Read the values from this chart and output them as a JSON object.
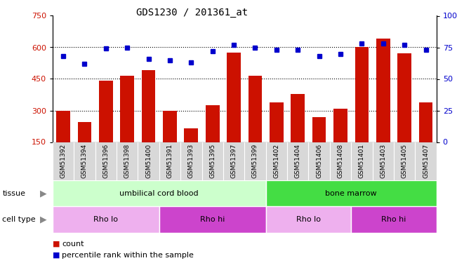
{
  "title": "GDS1230 / 201361_at",
  "samples": [
    "GSM51392",
    "GSM51394",
    "GSM51396",
    "GSM51398",
    "GSM51400",
    "GSM51391",
    "GSM51393",
    "GSM51395",
    "GSM51397",
    "GSM51399",
    "GSM51402",
    "GSM51404",
    "GSM51406",
    "GSM51408",
    "GSM51401",
    "GSM51403",
    "GSM51405",
    "GSM51407"
  ],
  "counts": [
    300,
    245,
    440,
    465,
    490,
    300,
    215,
    325,
    575,
    465,
    340,
    380,
    270,
    310,
    600,
    640,
    570,
    340
  ],
  "percentiles": [
    68,
    62,
    74,
    75,
    66,
    65,
    63,
    72,
    77,
    75,
    73,
    73,
    68,
    70,
    78,
    78,
    77,
    73
  ],
  "ylim_left": [
    150,
    750
  ],
  "ylim_right": [
    0,
    100
  ],
  "yticks_left": [
    150,
    300,
    450,
    600,
    750
  ],
  "yticks_right": [
    0,
    25,
    50,
    75,
    100
  ],
  "bar_color": "#cc1100",
  "dot_color": "#0000cc",
  "tissue_groups": [
    {
      "label": "umbilical cord blood",
      "start": 0,
      "end": 10,
      "color": "#ccffcc"
    },
    {
      "label": "bone marrow",
      "start": 10,
      "end": 18,
      "color": "#44dd44"
    }
  ],
  "cell_type_groups": [
    {
      "label": "Rho lo",
      "start": 0,
      "end": 5,
      "color": "#eeb0ee"
    },
    {
      "label": "Rho hi",
      "start": 5,
      "end": 10,
      "color": "#cc44cc"
    },
    {
      "label": "Rho lo",
      "start": 10,
      "end": 14,
      "color": "#eeb0ee"
    },
    {
      "label": "Rho hi",
      "start": 14,
      "end": 18,
      "color": "#cc44cc"
    }
  ],
  "legend_count_color": "#cc1100",
  "legend_dot_color": "#0000cc",
  "background_color": "#ffffff",
  "xticklabel_bg": "#d8d8d8",
  "grid_dotted_vals": [
    300,
    450,
    600
  ]
}
